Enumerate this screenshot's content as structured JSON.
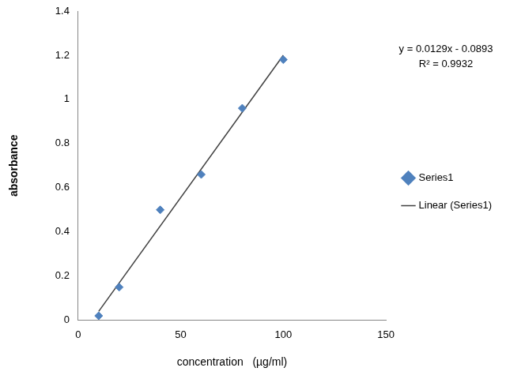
{
  "chart_data": {
    "type": "scatter",
    "x_label": "concentration   (µg/ml)",
    "y_label": "absorbance",
    "annotations": [
      "y = 0.0129x - 0.0893",
      "R² = 0.9932"
    ],
    "series": [
      {
        "name": "Series1",
        "type": "scatter",
        "color": "#4f81bd",
        "marker": "diamond",
        "x": [
          10,
          20,
          40,
          60,
          80,
          100
        ],
        "values": [
          0.02,
          0.15,
          0.5,
          0.66,
          0.96,
          1.18
        ]
      },
      {
        "name": "Linear (Series1)",
        "type": "line",
        "color": "#404040",
        "marker": "none",
        "line_style": "solid",
        "x": [
          10,
          100
        ],
        "values": [
          0.04,
          1.2
        ]
      }
    ],
    "xlim": [
      0,
      150
    ],
    "xticks": [
      0,
      50,
      100,
      150
    ],
    "ylim": [
      0,
      1.4
    ],
    "yticks": [
      0,
      0.2,
      0.4,
      0.6,
      0.8,
      1,
      1.2,
      1.4
    ],
    "grid": false,
    "legend": "right"
  }
}
